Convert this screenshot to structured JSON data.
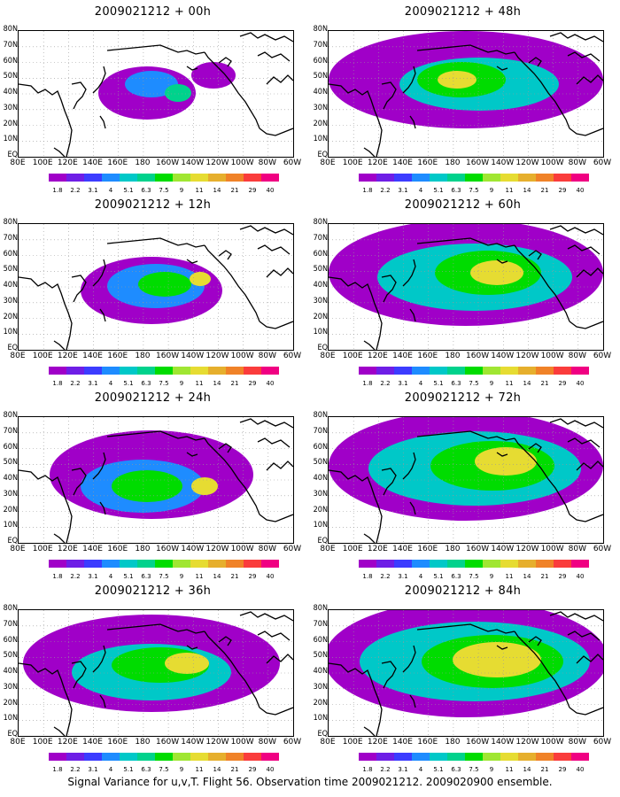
{
  "panels": [
    {
      "title": "2009021212 + 00h",
      "level": 0
    },
    {
      "title": "2009021212 + 12h",
      "level": 1
    },
    {
      "title": "2009021212 + 24h",
      "level": 2
    },
    {
      "title": "2009021212 + 36h",
      "level": 3
    },
    {
      "title": "2009021212 + 48h",
      "level": 4
    },
    {
      "title": "2009021212 + 60h",
      "level": 5
    },
    {
      "title": "2009021212 + 72h",
      "level": 6
    },
    {
      "title": "2009021212 + 84h",
      "level": 7
    }
  ],
  "lat_labels": [
    "80N",
    "70N",
    "60N",
    "50N",
    "40N",
    "30N",
    "20N",
    "10N",
    "EQ"
  ],
  "lon_labels": [
    "80E",
    "100E",
    "120E",
    "140E",
    "160E",
    "180",
    "160W",
    "140W",
    "120W",
    "100W",
    "80W",
    "60W"
  ],
  "colorbar": {
    "labels": [
      "1.8",
      "2.2",
      "3.1",
      "4",
      "5.1",
      "6.3",
      "7.5",
      "9",
      "11",
      "14",
      "21",
      "29",
      "40"
    ],
    "colors": [
      "#a000c8",
      "#6e1ee6",
      "#3c3cff",
      "#1e8cff",
      "#00c8c8",
      "#00d28c",
      "#00dc00",
      "#a0e632",
      "#e6dc32",
      "#e6af2d",
      "#f08228",
      "#fa3c3c",
      "#f00082"
    ]
  },
  "caption": "Signal Variance for u,v,T. Flight 56. Observation time 2009021212. 2009020900 ensemble."
}
